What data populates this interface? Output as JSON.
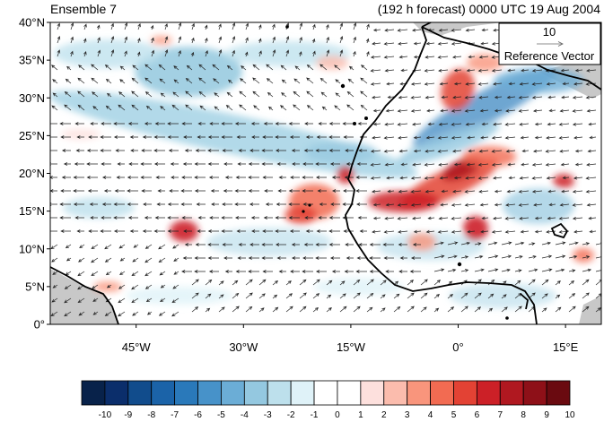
{
  "header": {
    "left_title": "Ensemble 7",
    "right_title": "(192 h forecast) 0000 UTC 19 Aug 2004"
  },
  "map": {
    "lat_range": [
      0,
      40
    ],
    "lon_range": [
      -57,
      20
    ],
    "lat_ticks": [
      {
        "value": 40,
        "label": "40°N"
      },
      {
        "value": 35,
        "label": "35°N"
      },
      {
        "value": 30,
        "label": "30°N"
      },
      {
        "value": 25,
        "label": "25°N"
      },
      {
        "value": 20,
        "label": "20°N"
      },
      {
        "value": 15,
        "label": "15°N"
      },
      {
        "value": 10,
        "label": "10°N"
      },
      {
        "value": 5,
        "label": "5°N"
      },
      {
        "value": 0,
        "label": "0°"
      }
    ],
    "lon_ticks": [
      {
        "value": -45,
        "label": "45°W"
      },
      {
        "value": -30,
        "label": "30°W"
      },
      {
        "value": -15,
        "label": "15°W"
      },
      {
        "value": 0,
        "label": "0°"
      },
      {
        "value": 15,
        "label": "15°E"
      }
    ],
    "land_color": "#c8c8c8",
    "coast_color": "#000000"
  },
  "reference_vector": {
    "magnitude": "10",
    "label": "Reference Vector"
  },
  "colorbar": {
    "labels": [
      "-10",
      "-9",
      "-8",
      "-7",
      "-6",
      "-5",
      "-4",
      "-3",
      "-2",
      "-1",
      "0",
      "1",
      "2",
      "3",
      "4",
      "5",
      "6",
      "7",
      "8",
      "9",
      "10"
    ],
    "colors": [
      "#08224a",
      "#0b2e6b",
      "#114c8c",
      "#1b63a8",
      "#2a79ba",
      "#4792c9",
      "#6badd6",
      "#94c8e0",
      "#bde0ec",
      "#dff2f8",
      "#ffffff",
      "#ffffff",
      "#fde0dd",
      "#fbbcad",
      "#f9957c",
      "#f26b52",
      "#e34234",
      "#cc2027",
      "#b01820",
      "#8e1018",
      "#6a0a10"
    ]
  }
}
